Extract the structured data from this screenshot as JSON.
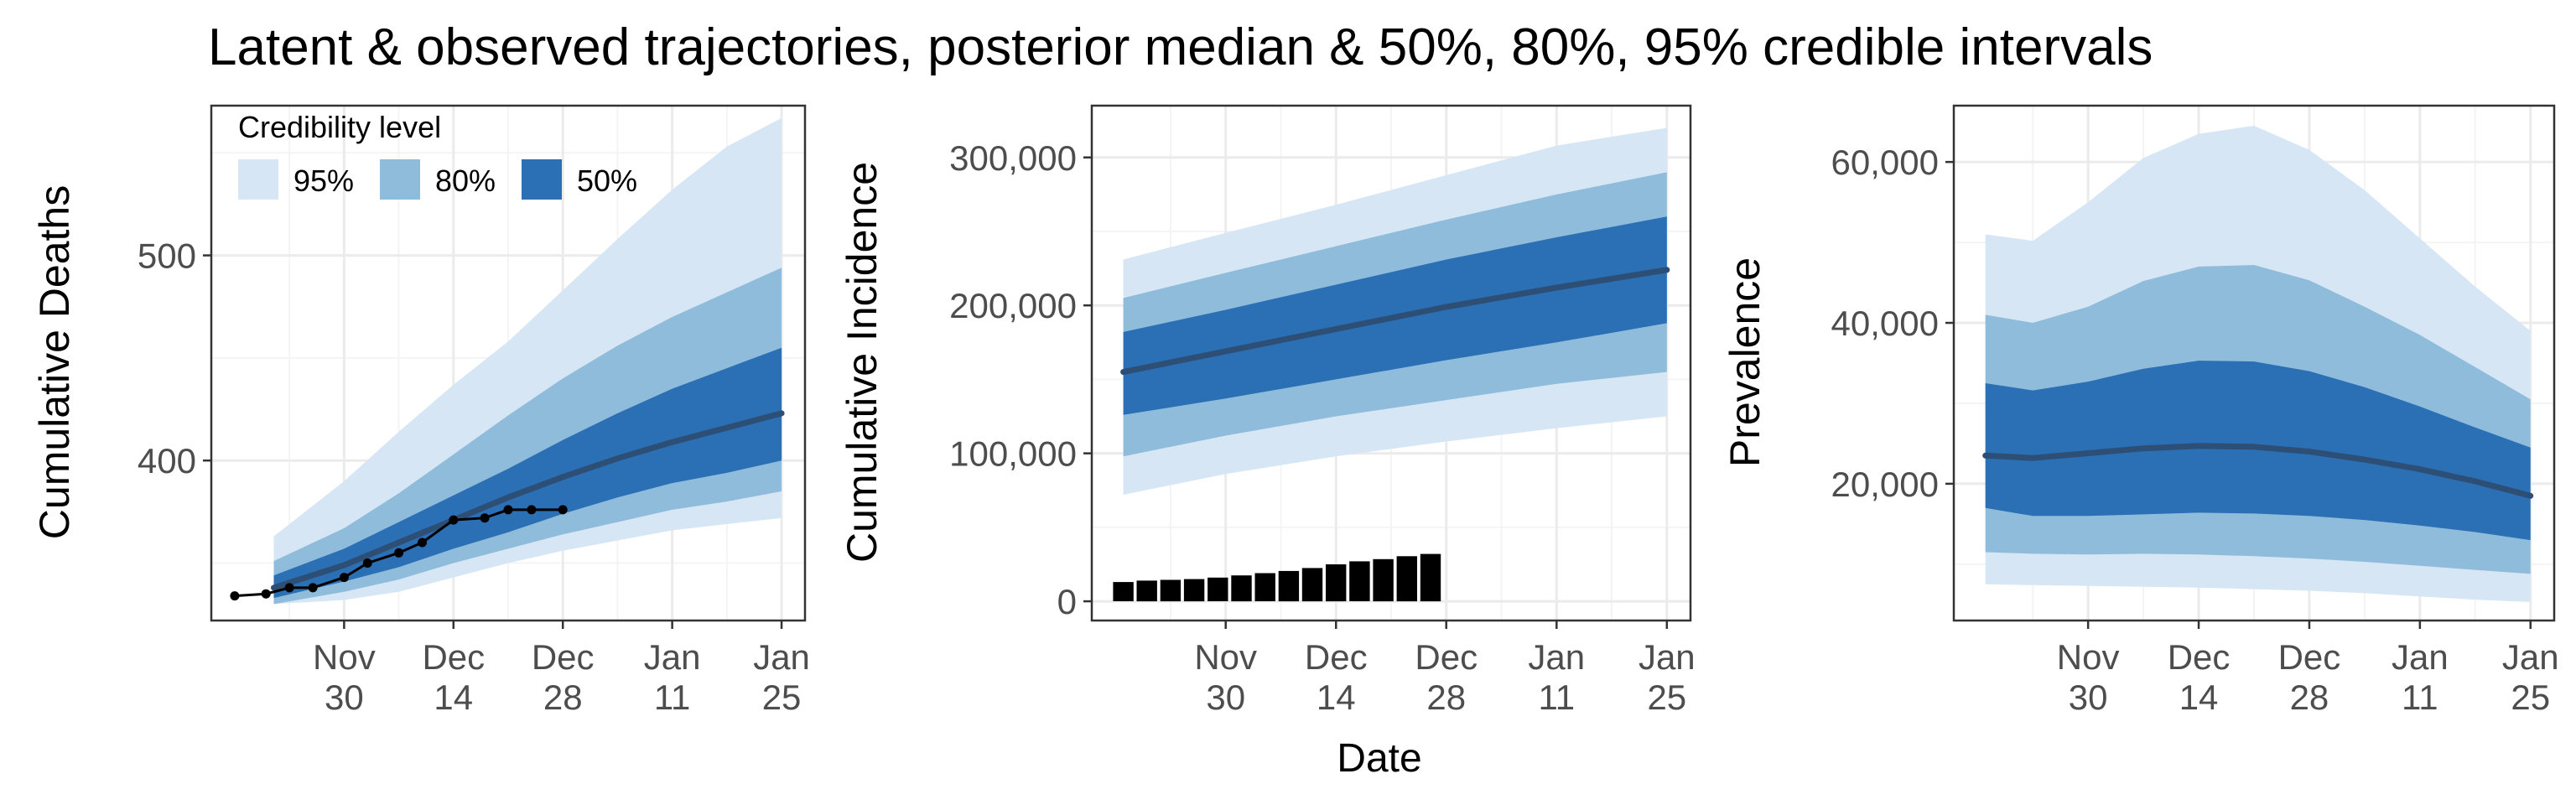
{
  "figure": {
    "title": "Latent & observed trajectories, posterior median & 50%, 80%, 95% credible intervals",
    "shared_xlabel": "Date"
  },
  "colors": {
    "band95": "#d6e6f4",
    "band80": "#90bcdb",
    "band50": "#2b6fb5",
    "median": "#2d4f75",
    "observed": "#000000",
    "grid_major": "#ebebeb",
    "grid_minor": "#f4f4f4",
    "panel_border": "#333333",
    "tick_text": "#4d4d4d"
  },
  "legend": {
    "title": "Credibility level",
    "entries": [
      {
        "label": "95%",
        "band": "band95"
      },
      {
        "label": "80%",
        "band": "band80"
      },
      {
        "label": "50%",
        "band": "band50"
      }
    ]
  },
  "chart_data": [
    {
      "type": "area",
      "ylabel": "Cumulative Deaths",
      "xlim": [
        "2020-11-13",
        "2021-01-28"
      ],
      "ylim": [
        322,
        573
      ],
      "x_ticks": [
        {
          "date": "2020-11-30",
          "line1": "Nov",
          "line2": "30"
        },
        {
          "date": "2020-12-14",
          "line1": "Dec",
          "line2": "14"
        },
        {
          "date": "2020-12-28",
          "line1": "Dec",
          "line2": "28"
        },
        {
          "date": "2021-01-11",
          "line1": "Jan",
          "line2": "11"
        },
        {
          "date": "2021-01-25",
          "line1": "Jan",
          "line2": "25"
        }
      ],
      "y_ticks": [
        {
          "value": 400,
          "label": "400"
        },
        {
          "value": 500,
          "label": "500"
        }
      ],
      "x": [
        "2020-11-21",
        "2020-11-30",
        "2020-12-07",
        "2020-12-14",
        "2020-12-21",
        "2020-12-28",
        "2021-01-04",
        "2021-01-11",
        "2021-01-18",
        "2021-01-25"
      ],
      "median": [
        338,
        349,
        360,
        371,
        382,
        392,
        401,
        409,
        416,
        423
      ],
      "ci50": [
        [
          333,
          344
        ],
        [
          341,
          357
        ],
        [
          348,
          370
        ],
        [
          357,
          383
        ],
        [
          365,
          396
        ],
        [
          374,
          410
        ],
        [
          382,
          423
        ],
        [
          389,
          435
        ],
        [
          394,
          445
        ],
        [
          400,
          455
        ]
      ],
      "ci80": [
        [
          330,
          351
        ],
        [
          336,
          367
        ],
        [
          342,
          384
        ],
        [
          350,
          403
        ],
        [
          357,
          422
        ],
        [
          364,
          440
        ],
        [
          370,
          456
        ],
        [
          376,
          470
        ],
        [
          380,
          482
        ],
        [
          385,
          494
        ]
      ],
      "ci95": [
        [
          330,
          363
        ],
        [
          332,
          390
        ],
        [
          336,
          414
        ],
        [
          343,
          437
        ],
        [
          350,
          458
        ],
        [
          356,
          483
        ],
        [
          361,
          508
        ],
        [
          366,
          532
        ],
        [
          369,
          553
        ],
        [
          372,
          567
        ]
      ],
      "observed": {
        "x": [
          "2020-11-16",
          "2020-11-20",
          "2020-11-23",
          "2020-11-26",
          "2020-11-30",
          "2020-12-03",
          "2020-12-07",
          "2020-12-10",
          "2020-12-14",
          "2020-12-18",
          "2020-12-21",
          "2020-12-24",
          "2020-12-28"
        ],
        "values": [
          334,
          335,
          338,
          338,
          343,
          350,
          355,
          360,
          371,
          372,
          376,
          376,
          376
        ]
      }
    },
    {
      "type": "area",
      "ylabel": "Cumulative Incidence",
      "xlim": [
        "2020-11-13",
        "2021-01-28"
      ],
      "ylim": [
        -13000,
        335000
      ],
      "x_ticks": [
        {
          "date": "2020-11-30",
          "line1": "Nov",
          "line2": "30"
        },
        {
          "date": "2020-12-14",
          "line1": "Dec",
          "line2": "14"
        },
        {
          "date": "2020-12-28",
          "line1": "Dec",
          "line2": "28"
        },
        {
          "date": "2021-01-11",
          "line1": "Jan",
          "line2": "11"
        },
        {
          "date": "2021-01-25",
          "line1": "Jan",
          "line2": "25"
        }
      ],
      "y_ticks": [
        {
          "value": 0,
          "label": "0"
        },
        {
          "value": 100000,
          "label": "100,000"
        },
        {
          "value": 200000,
          "label": "200,000"
        },
        {
          "value": 300000,
          "label": "300,000"
        }
      ],
      "x": [
        "2020-11-17",
        "2020-11-30",
        "2020-12-14",
        "2020-12-28",
        "2021-01-11",
        "2021-01-25"
      ],
      "median": [
        155000,
        169000,
        184000,
        199000,
        212000,
        224000
      ],
      "ci50": [
        [
          126000,
          182000
        ],
        [
          137000,
          197000
        ],
        [
          150000,
          214000
        ],
        [
          163000,
          231000
        ],
        [
          175000,
          246000
        ],
        [
          188000,
          260000
        ]
      ],
      "ci80": [
        [
          98000,
          205000
        ],
        [
          112000,
          222000
        ],
        [
          125000,
          240000
        ],
        [
          136000,
          258000
        ],
        [
          147000,
          275000
        ],
        [
          155000,
          290000
        ]
      ],
      "ci95": [
        [
          72000,
          231000
        ],
        [
          86000,
          249000
        ],
        [
          98000,
          268000
        ],
        [
          108000,
          288000
        ],
        [
          117000,
          308000
        ],
        [
          125000,
          320000
        ]
      ],
      "observed": {
        "type": "bar",
        "x": [
          "2020-11-17",
          "2020-11-20",
          "2020-11-23",
          "2020-11-26",
          "2020-11-29",
          "2020-12-02",
          "2020-12-05",
          "2020-12-08",
          "2020-12-11",
          "2020-12-14",
          "2020-12-17",
          "2020-12-20",
          "2020-12-23",
          "2020-12-26"
        ],
        "values": [
          13000,
          14000,
          14500,
          15000,
          16000,
          17500,
          19000,
          20500,
          22500,
          25000,
          27000,
          28500,
          30500,
          32000
        ]
      }
    },
    {
      "type": "area",
      "ylabel": "Prevalence",
      "xlim": [
        "2020-11-13",
        "2021-01-28"
      ],
      "ylim": [
        3000,
        67000
      ],
      "x_ticks": [
        {
          "date": "2020-11-30",
          "line1": "Nov",
          "line2": "30"
        },
        {
          "date": "2020-12-14",
          "line1": "Dec",
          "line2": "14"
        },
        {
          "date": "2020-12-28",
          "line1": "Dec",
          "line2": "28"
        },
        {
          "date": "2021-01-11",
          "line1": "Jan",
          "line2": "11"
        },
        {
          "date": "2021-01-25",
          "line1": "Jan",
          "line2": "25"
        }
      ],
      "y_ticks": [
        {
          "value": 20000,
          "label": "20,000"
        },
        {
          "value": 40000,
          "label": "40,000"
        },
        {
          "value": 60000,
          "label": "60,000"
        }
      ],
      "x": [
        "2020-11-17",
        "2020-11-23",
        "2020-11-30",
        "2020-12-07",
        "2020-12-14",
        "2020-12-21",
        "2020-12-28",
        "2021-01-04",
        "2021-01-11",
        "2021-01-18",
        "2021-01-25"
      ],
      "median": [
        23500,
        23200,
        23800,
        24400,
        24700,
        24600,
        24000,
        23000,
        21800,
        20300,
        18500
      ],
      "ci50": [
        [
          17000,
          32500
        ],
        [
          16000,
          31600
        ],
        [
          16000,
          32700
        ],
        [
          16200,
          34300
        ],
        [
          16400,
          35300
        ],
        [
          16300,
          35200
        ],
        [
          16000,
          34000
        ],
        [
          15500,
          32000
        ],
        [
          14800,
          29600
        ],
        [
          14000,
          27000
        ],
        [
          13000,
          24500
        ]
      ],
      "ci80": [
        [
          11500,
          41000
        ],
        [
          11300,
          40000
        ],
        [
          11200,
          42000
        ],
        [
          11300,
          45200
        ],
        [
          11200,
          47000
        ],
        [
          11000,
          47200
        ],
        [
          10700,
          45300
        ],
        [
          10300,
          42000
        ],
        [
          9800,
          38500
        ],
        [
          9300,
          34500
        ],
        [
          8800,
          30500
        ]
      ],
      "ci95": [
        [
          7500,
          51000
        ],
        [
          7400,
          50200
        ],
        [
          7300,
          55000
        ],
        [
          7200,
          60500
        ],
        [
          7100,
          63500
        ],
        [
          6900,
          64500
        ],
        [
          6700,
          61500
        ],
        [
          6400,
          56500
        ],
        [
          6000,
          50500
        ],
        [
          5600,
          44500
        ],
        [
          5300,
          39000
        ]
      ]
    }
  ]
}
